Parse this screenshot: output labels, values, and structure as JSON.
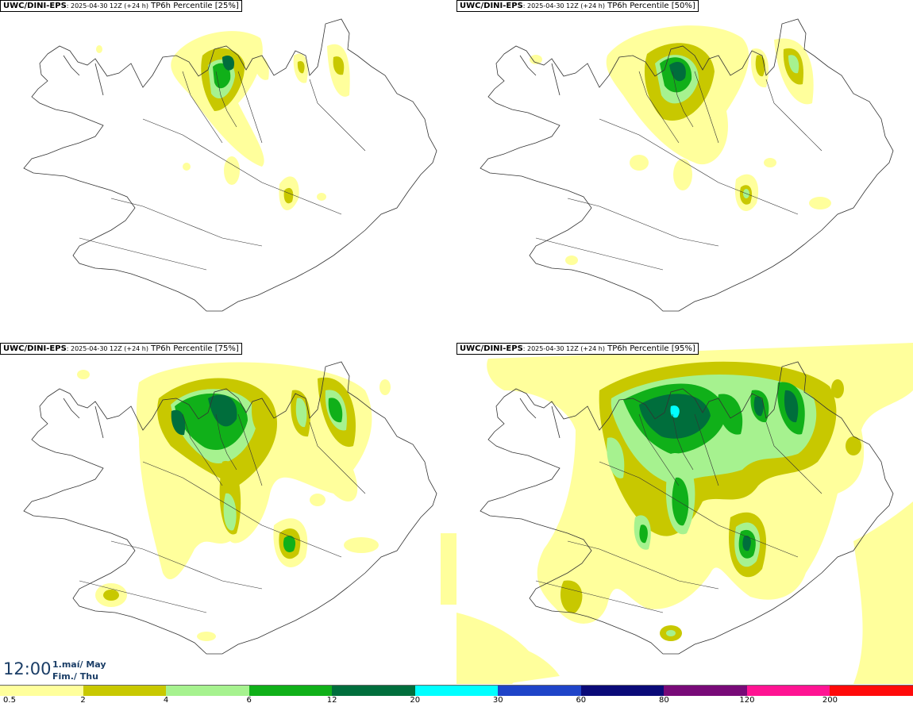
{
  "panels": [
    {
      "model": "UWC/DINI-EPS",
      "run": ": 2025-04-30 12Z (+24 h)",
      "product": "TP6h Percentile [25%]"
    },
    {
      "model": "UWC/DINI-EPS",
      "run": ": 2025-04-30 12Z (+24 h)",
      "product": "TP6h Percentile [50%]"
    },
    {
      "model": "UWC/DINI-EPS",
      "run": ": 2025-04-30 12Z (+24 h)",
      "product": "TP6h Percentile [75%]"
    },
    {
      "model": "UWC/DINI-EPS",
      "run": ": 2025-04-30 12Z (+24 h)",
      "product": "TP6h Percentile [95%]"
    }
  ],
  "valid_time": {
    "clock": "12:00",
    "date_line1": "1.maí/ May",
    "date_line2": "Fim./ Thu"
  },
  "legend": {
    "bins": [
      {
        "color": "#ffff9c"
      },
      {
        "color": "#c8c800"
      },
      {
        "color": "#a6f28f"
      },
      {
        "color": "#10b019"
      },
      {
        "color": "#006e3c"
      },
      {
        "color": "#00ffff"
      },
      {
        "color": "#1f44c8"
      },
      {
        "color": "#0a0a78"
      },
      {
        "color": "#780a78"
      },
      {
        "color": "#ff1493"
      },
      {
        "color": "#ff0a0a"
      }
    ],
    "ticks": [
      "0.5",
      "2",
      "4",
      "6",
      "12",
      "20",
      "30",
      "60",
      "80",
      "120",
      "200"
    ]
  }
}
